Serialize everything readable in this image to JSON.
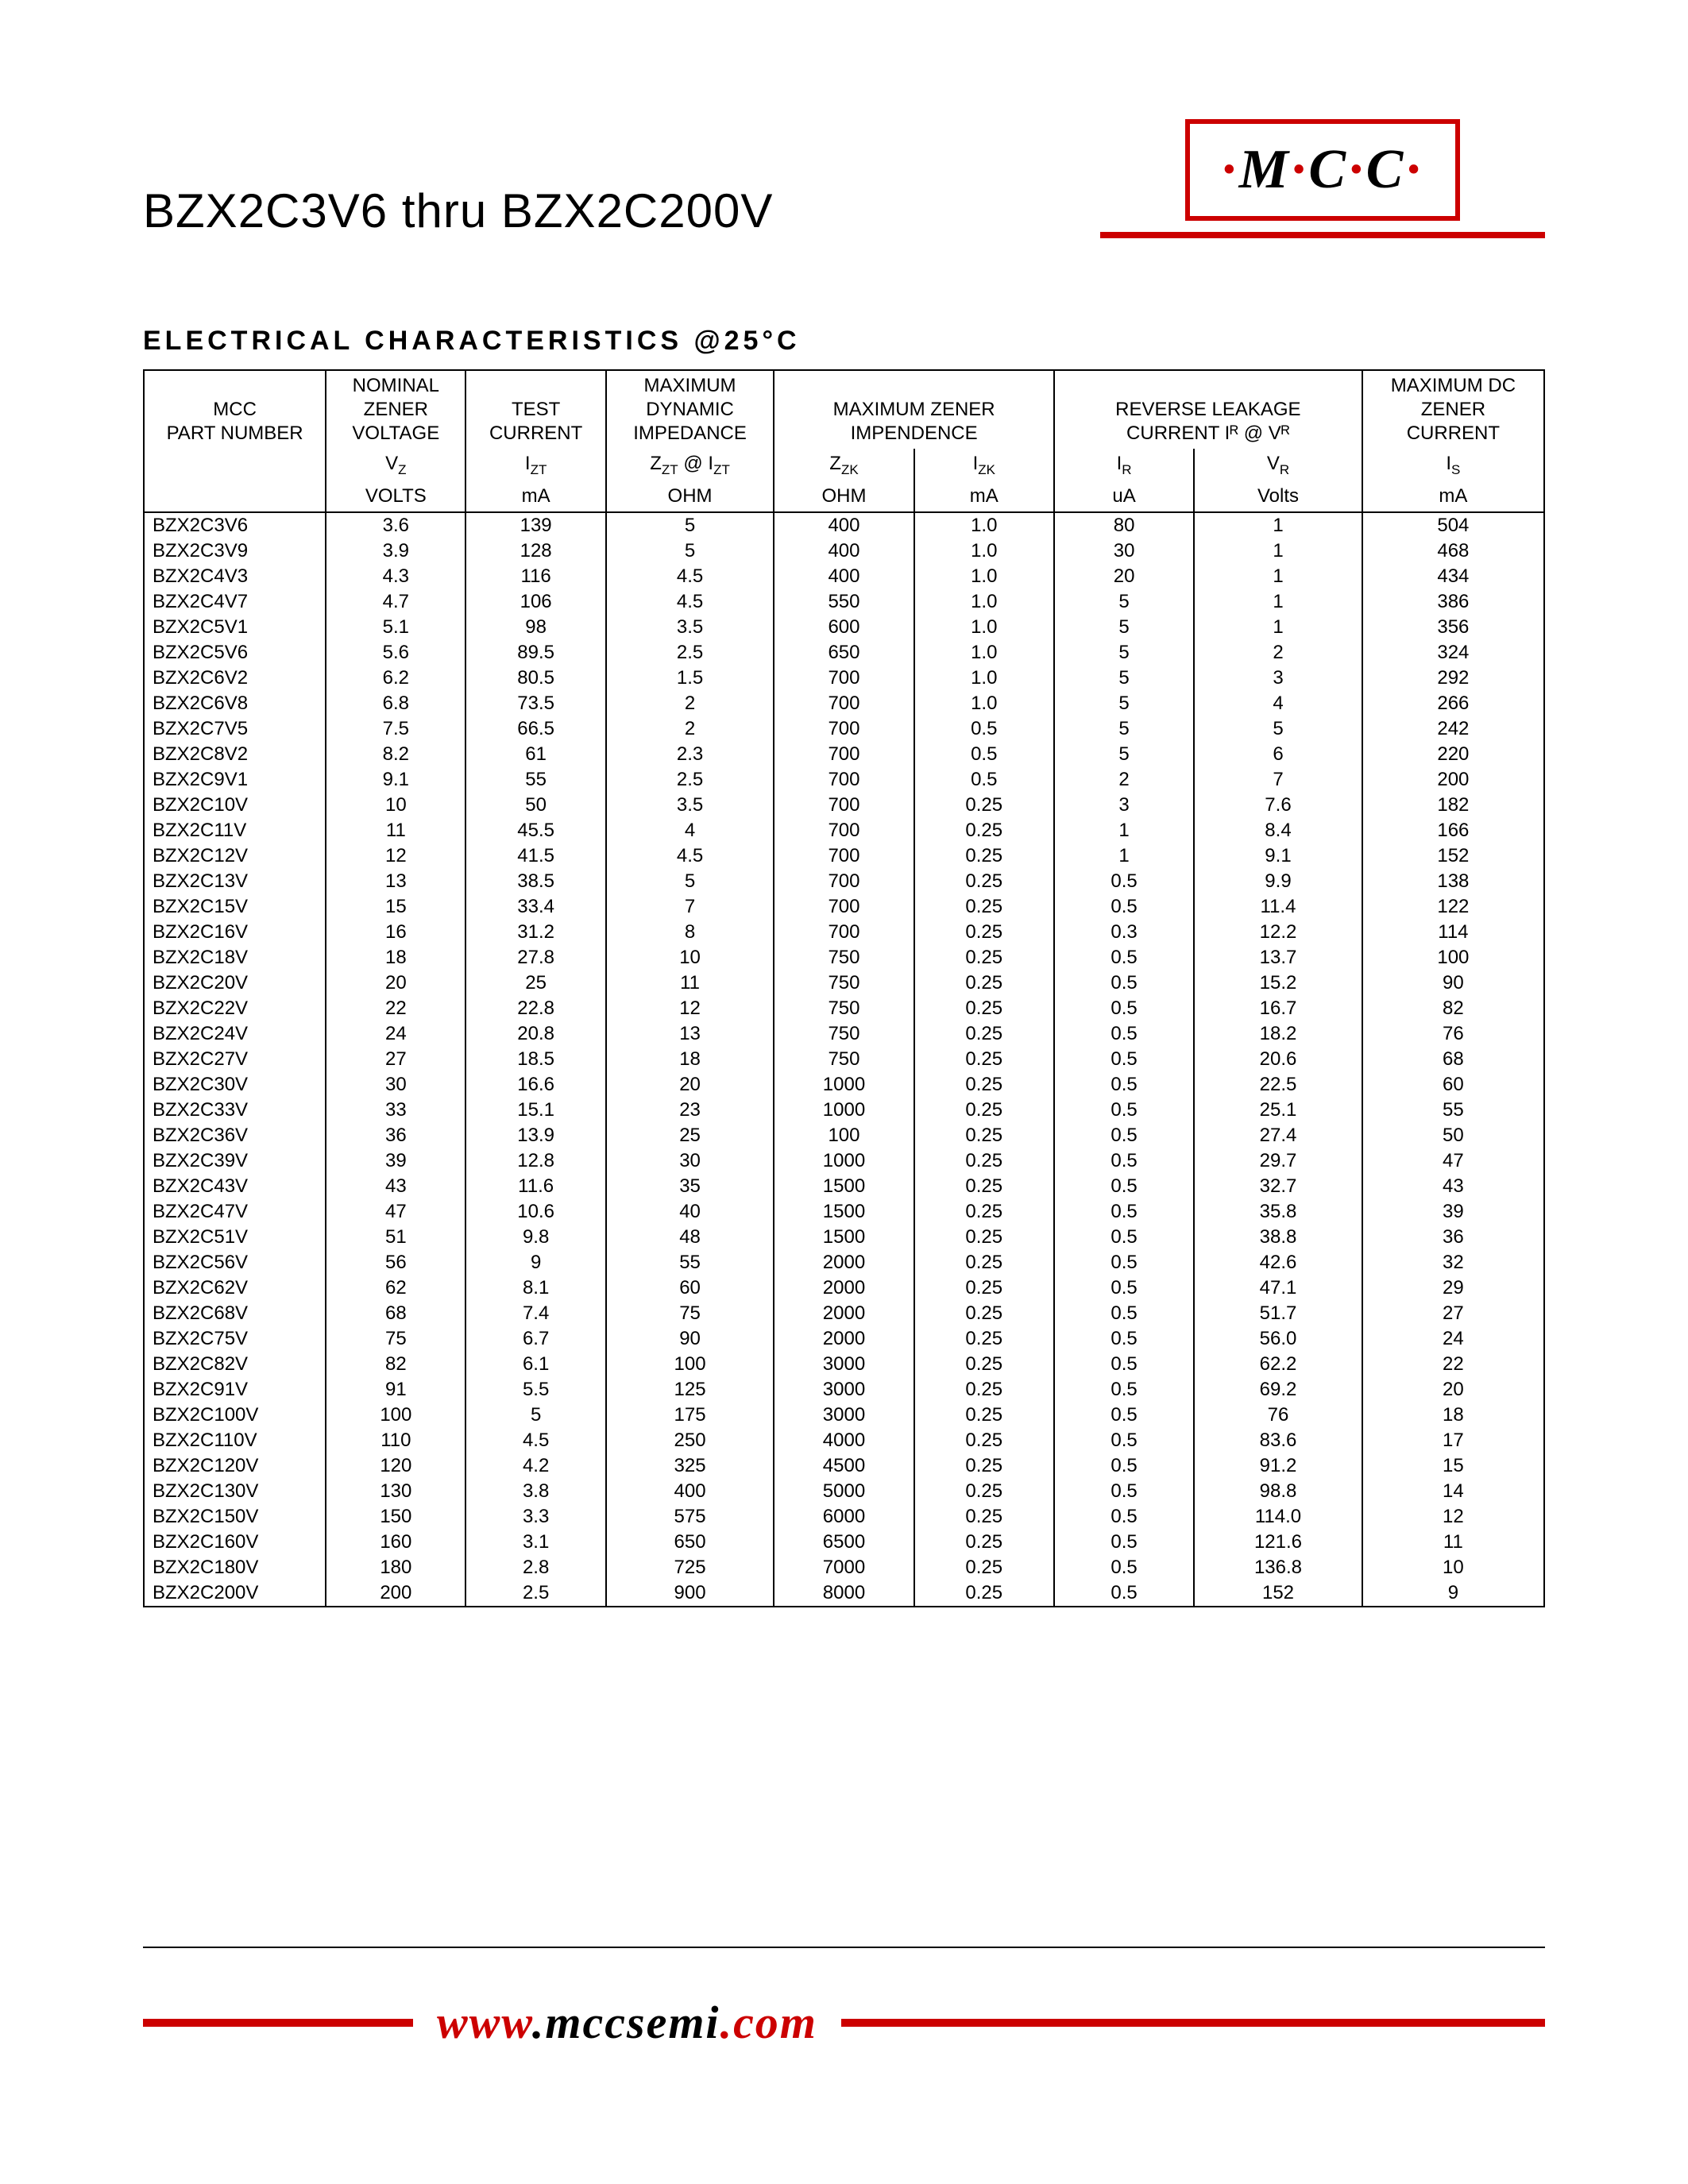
{
  "header": {
    "title": "BZX2C3V6 thru BZX2C200V",
    "logo_text": "M·C·C",
    "logo_parts": [
      "M",
      "C",
      "C"
    ]
  },
  "section_title": "ELECTRICAL CHARACTERISTICS @25°C",
  "footer": {
    "url_www": "www",
    "url_mid": ".mccsemi",
    "url_tld": ".com"
  },
  "colors": {
    "accent": "#cc0000",
    "border": "#000000",
    "background": "#ffffff"
  },
  "table": {
    "group_headers": [
      "MCC\nPART NUMBER",
      "NOMINAL\nZENER\nVOLTAGE",
      "TEST\nCURRENT",
      "MAXIMUM\nDYNAMIC\nIMPEDANCE",
      "MAXIMUM ZENER\nIMPENDENCE",
      "REVERSE LEAKAGE\nCURRENT Iᴿ @ Vᴿ",
      "MAXIMUM DC\nZENER\nCURRENT"
    ],
    "sub_headers": [
      "",
      "V_Z",
      "I_ZT",
      "Z_ZT @ I_ZT",
      "Z_ZK",
      "I_ZK",
      "I_R",
      "V_R",
      "I_S"
    ],
    "units": [
      "",
      "VOLTS",
      "mA",
      "OHM",
      "OHM",
      "mA",
      "uA",
      "Volts",
      "mA"
    ],
    "col_widths_pct": [
      13,
      10,
      10,
      12,
      10,
      10,
      10,
      12,
      13
    ],
    "rows": [
      [
        "BZX2C3V6",
        "3.6",
        "139",
        "5",
        "400",
        "1.0",
        "80",
        "1",
        "504"
      ],
      [
        "BZX2C3V9",
        "3.9",
        "128",
        "5",
        "400",
        "1.0",
        "30",
        "1",
        "468"
      ],
      [
        "BZX2C4V3",
        "4.3",
        "116",
        "4.5",
        "400",
        "1.0",
        "20",
        "1",
        "434"
      ],
      [
        "BZX2C4V7",
        "4.7",
        "106",
        "4.5",
        "550",
        "1.0",
        "5",
        "1",
        "386"
      ],
      [
        "BZX2C5V1",
        "5.1",
        "98",
        "3.5",
        "600",
        "1.0",
        "5",
        "1",
        "356"
      ],
      [
        "BZX2C5V6",
        "5.6",
        "89.5",
        "2.5",
        "650",
        "1.0",
        "5",
        "2",
        "324"
      ],
      [
        "BZX2C6V2",
        "6.2",
        "80.5",
        "1.5",
        "700",
        "1.0",
        "5",
        "3",
        "292"
      ],
      [
        "BZX2C6V8",
        "6.8",
        "73.5",
        "2",
        "700",
        "1.0",
        "5",
        "4",
        "266"
      ],
      [
        "BZX2C7V5",
        "7.5",
        "66.5",
        "2",
        "700",
        "0.5",
        "5",
        "5",
        "242"
      ],
      [
        "BZX2C8V2",
        "8.2",
        "61",
        "2.3",
        "700",
        "0.5",
        "5",
        "6",
        "220"
      ],
      [
        "BZX2C9V1",
        "9.1",
        "55",
        "2.5",
        "700",
        "0.5",
        "2",
        "7",
        "200"
      ],
      [
        "BZX2C10V",
        "10",
        "50",
        "3.5",
        "700",
        "0.25",
        "3",
        "7.6",
        "182"
      ],
      [
        "BZX2C11V",
        "11",
        "45.5",
        "4",
        "700",
        "0.25",
        "1",
        "8.4",
        "166"
      ],
      [
        "BZX2C12V",
        "12",
        "41.5",
        "4.5",
        "700",
        "0.25",
        "1",
        "9.1",
        "152"
      ],
      [
        "BZX2C13V",
        "13",
        "38.5",
        "5",
        "700",
        "0.25",
        "0.5",
        "9.9",
        "138"
      ],
      [
        "BZX2C15V",
        "15",
        "33.4",
        "7",
        "700",
        "0.25",
        "0.5",
        "11.4",
        "122"
      ],
      [
        "BZX2C16V",
        "16",
        "31.2",
        "8",
        "700",
        "0.25",
        "0.3",
        "12.2",
        "114"
      ],
      [
        "BZX2C18V",
        "18",
        "27.8",
        "10",
        "750",
        "0.25",
        "0.5",
        "13.7",
        "100"
      ],
      [
        "BZX2C20V",
        "20",
        "25",
        "11",
        "750",
        "0.25",
        "0.5",
        "15.2",
        "90"
      ],
      [
        "BZX2C22V",
        "22",
        "22.8",
        "12",
        "750",
        "0.25",
        "0.5",
        "16.7",
        "82"
      ],
      [
        "BZX2C24V",
        "24",
        "20.8",
        "13",
        "750",
        "0.25",
        "0.5",
        "18.2",
        "76"
      ],
      [
        "BZX2C27V",
        "27",
        "18.5",
        "18",
        "750",
        "0.25",
        "0.5",
        "20.6",
        "68"
      ],
      [
        "BZX2C30V",
        "30",
        "16.6",
        "20",
        "1000",
        "0.25",
        "0.5",
        "22.5",
        "60"
      ],
      [
        "BZX2C33V",
        "33",
        "15.1",
        "23",
        "1000",
        "0.25",
        "0.5",
        "25.1",
        "55"
      ],
      [
        "BZX2C36V",
        "36",
        "13.9",
        "25",
        "100",
        "0.25",
        "0.5",
        "27.4",
        "50"
      ],
      [
        "BZX2C39V",
        "39",
        "12.8",
        "30",
        "1000",
        "0.25",
        "0.5",
        "29.7",
        "47"
      ],
      [
        "BZX2C43V",
        "43",
        "11.6",
        "35",
        "1500",
        "0.25",
        "0.5",
        "32.7",
        "43"
      ],
      [
        "BZX2C47V",
        "47",
        "10.6",
        "40",
        "1500",
        "0.25",
        "0.5",
        "35.8",
        "39"
      ],
      [
        "BZX2C51V",
        "51",
        "9.8",
        "48",
        "1500",
        "0.25",
        "0.5",
        "38.8",
        "36"
      ],
      [
        "BZX2C56V",
        "56",
        "9",
        "55",
        "2000",
        "0.25",
        "0.5",
        "42.6",
        "32"
      ],
      [
        "BZX2C62V",
        "62",
        "8.1",
        "60",
        "2000",
        "0.25",
        "0.5",
        "47.1",
        "29"
      ],
      [
        "BZX2C68V",
        "68",
        "7.4",
        "75",
        "2000",
        "0.25",
        "0.5",
        "51.7",
        "27"
      ],
      [
        "BZX2C75V",
        "75",
        "6.7",
        "90",
        "2000",
        "0.25",
        "0.5",
        "56.0",
        "24"
      ],
      [
        "BZX2C82V",
        "82",
        "6.1",
        "100",
        "3000",
        "0.25",
        "0.5",
        "62.2",
        "22"
      ],
      [
        "BZX2C91V",
        "91",
        "5.5",
        "125",
        "3000",
        "0.25",
        "0.5",
        "69.2",
        "20"
      ],
      [
        "BZX2C100V",
        "100",
        "5",
        "175",
        "3000",
        "0.25",
        "0.5",
        "76",
        "18"
      ],
      [
        "BZX2C110V",
        "110",
        "4.5",
        "250",
        "4000",
        "0.25",
        "0.5",
        "83.6",
        "17"
      ],
      [
        "BZX2C120V",
        "120",
        "4.2",
        "325",
        "4500",
        "0.25",
        "0.5",
        "91.2",
        "15"
      ],
      [
        "BZX2C130V",
        "130",
        "3.8",
        "400",
        "5000",
        "0.25",
        "0.5",
        "98.8",
        "14"
      ],
      [
        "BZX2C150V",
        "150",
        "3.3",
        "575",
        "6000",
        "0.25",
        "0.5",
        "114.0",
        "12"
      ],
      [
        "BZX2C160V",
        "160",
        "3.1",
        "650",
        "6500",
        "0.25",
        "0.5",
        "121.6",
        "11"
      ],
      [
        "BZX2C180V",
        "180",
        "2.8",
        "725",
        "7000",
        "0.25",
        "0.5",
        "136.8",
        "10"
      ],
      [
        "BZX2C200V",
        "200",
        "2.5",
        "900",
        "8000",
        "0.25",
        "0.5",
        "152",
        "9"
      ]
    ]
  }
}
